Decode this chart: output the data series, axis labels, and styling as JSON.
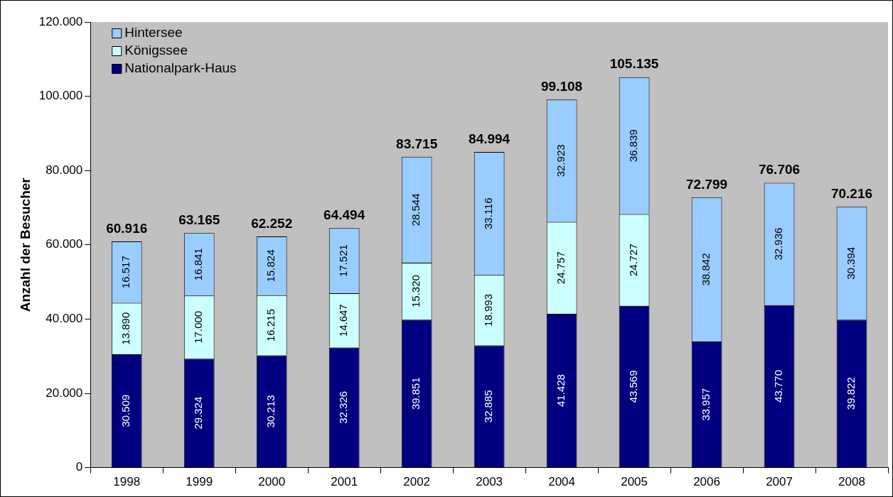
{
  "chart_data": {
    "type": "bar",
    "stacked": true,
    "ylabel": "Anzahl der Besucher",
    "categories": [
      "1998",
      "1999",
      "2000",
      "2001",
      "2002",
      "2003",
      "2004",
      "2005",
      "2006",
      "2007",
      "2008"
    ],
    "series": [
      {
        "name": "Nationalpark-Haus",
        "color": "#000080",
        "values": [
          30509,
          29324,
          30213,
          32326,
          39851,
          32885,
          41428,
          43569,
          33957,
          43770,
          39822
        ],
        "value_labels": [
          "30.509",
          "29.324",
          "30.213",
          "32.326",
          "39.851",
          "32.885",
          "41.428",
          "43.569",
          "33.957",
          "43.770",
          "39.822"
        ]
      },
      {
        "name": "Königssee",
        "color": "#ccffff",
        "values": [
          13890,
          17000,
          16215,
          14647,
          15320,
          18993,
          24757,
          24727,
          null,
          null,
          null
        ],
        "value_labels": [
          "13.890",
          "17.000",
          "16.215",
          "14.647",
          "15.320",
          "18.993",
          "24.757",
          "24.727",
          null,
          null,
          null
        ]
      },
      {
        "name": "Hintersee",
        "color": "#99ccff",
        "values": [
          16517,
          16841,
          15824,
          17521,
          28544,
          33116,
          32923,
          36839,
          38842,
          32936,
          30394
        ],
        "value_labels": [
          "16.517",
          "16.841",
          "15.824",
          "17.521",
          "28.544",
          "33.116",
          "32.923",
          "36.839",
          "38.842",
          "32.936",
          "30.394"
        ]
      }
    ],
    "totals": [
      "60.916",
      "63.165",
      "62.252",
      "64.494",
      "83.715",
      "84.994",
      "99.108",
      "105.135",
      "72.799",
      "76.706",
      "70.216"
    ],
    "ylim": [
      0,
      120000
    ],
    "yticks": [
      0,
      {
        "value": 20000,
        "label": "20.000"
      },
      {
        "value": 40000,
        "label": "40.000"
      },
      {
        "value": 60000,
        "label": "60.000"
      },
      {
        "value": 80000,
        "label": "80.000"
      },
      {
        "value": 100000,
        "label": "100.000"
      },
      {
        "value": 120000,
        "label": "120.000"
      }
    ],
    "grid": false,
    "legend": "top left"
  }
}
